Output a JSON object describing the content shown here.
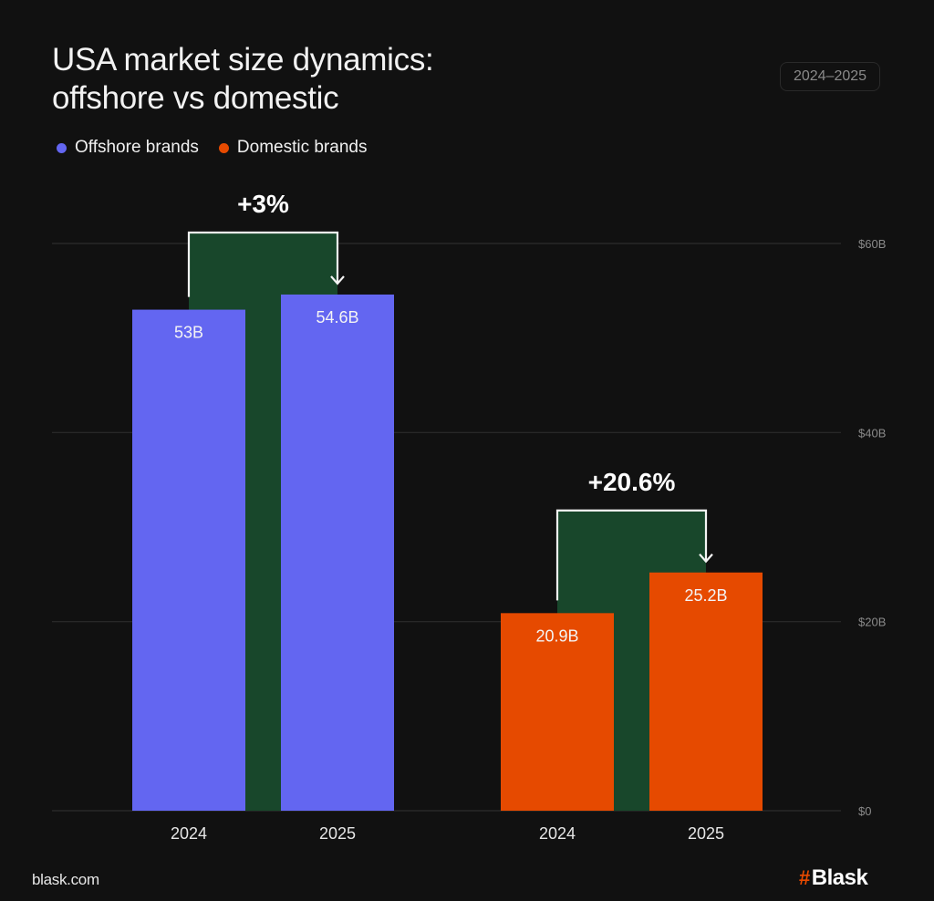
{
  "header": {
    "title_line1": "USA market size dynamics:",
    "title_line2": "offshore vs domestic",
    "period_badge": "2024–2025"
  },
  "legend": [
    {
      "label": "Offshore brands",
      "color": "#6366f1"
    },
    {
      "label": "Domestic brands",
      "color": "#e64a00"
    }
  ],
  "footer": {
    "site": "blask.com",
    "logo_hash": "#",
    "logo_text": "Blask"
  },
  "colors": {
    "background": "#111111",
    "offshore": "#6366f1",
    "domestic": "#e64a00",
    "bridge": "#18472b",
    "grid": "#2c2c2c",
    "tick": "#8a8a8a"
  },
  "chart_data": {
    "type": "bar",
    "title": "USA market size dynamics: offshore vs domestic",
    "xlabel": "",
    "ylabel": "",
    "ylim": [
      0,
      60
    ],
    "grid": true,
    "y_axis_position": "right",
    "legend_position": "top-left",
    "y_ticks": [
      {
        "value": 0,
        "label": "$0"
      },
      {
        "value": 20,
        "label": "$20B"
      },
      {
        "value": 40,
        "label": "$40B"
      },
      {
        "value": 60,
        "label": "$60B"
      }
    ],
    "groups": [
      {
        "name": "Offshore brands",
        "color": "#6366f1",
        "change_label": "+3%",
        "bars": [
          {
            "category": "2024",
            "value": 53,
            "label": "53B"
          },
          {
            "category": "2025",
            "value": 54.6,
            "label": "54.6B"
          }
        ]
      },
      {
        "name": "Domestic brands",
        "color": "#e64a00",
        "change_label": "+20.6%",
        "bars": [
          {
            "category": "2024",
            "value": 20.9,
            "label": "20.9B"
          },
          {
            "category": "2025",
            "value": 25.2,
            "label": "25.2B"
          }
        ]
      }
    ]
  }
}
